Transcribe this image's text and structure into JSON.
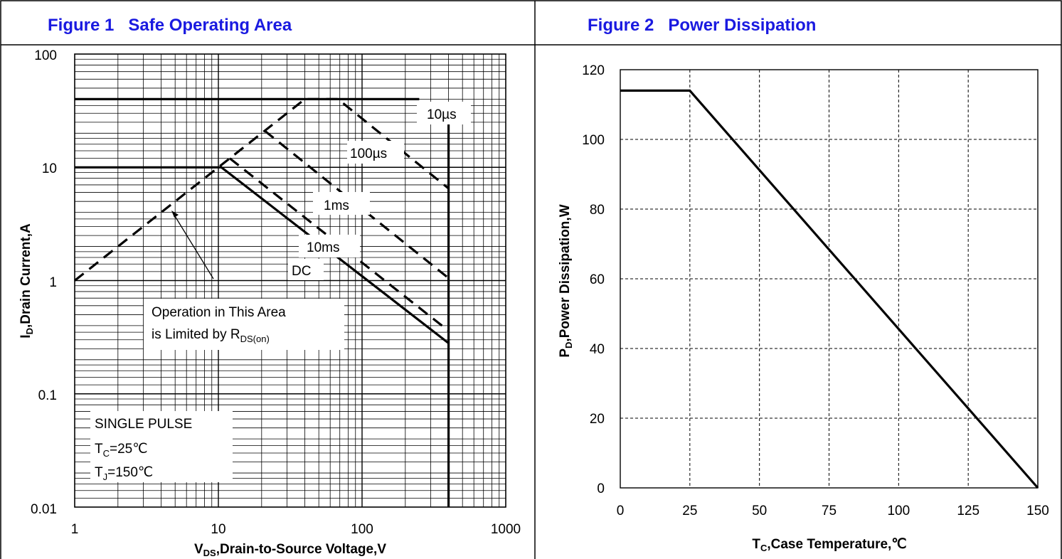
{
  "chart_data": [
    {
      "type": "line",
      "title": "Figure 1   Safe Operating Area",
      "x_scale": "log",
      "y_scale": "log",
      "xlim": [
        1,
        1000
      ],
      "ylim": [
        0.01,
        100
      ],
      "x_ticks": [
        "1",
        "10",
        "100",
        "1000"
      ],
      "y_ticks": [
        "100",
        "10",
        "1",
        "0.1",
        "0.01"
      ],
      "xlabel": {
        "main": "V",
        "sub": "DS",
        "rest": ",Drain-to-Source Voltage,V"
      },
      "ylabel": {
        "main": "I",
        "sub": "D",
        "rest": ",Drain Current,A"
      },
      "series": [
        {
          "name": "10µs",
          "style": "solid",
          "x": [
            1,
            250
          ],
          "y": [
            40,
            40
          ]
        },
        {
          "name": "10µs",
          "style": "dashed",
          "x": [
            1,
            40,
            68,
            400
          ],
          "y": [
            1,
            40,
            40,
            6.5
          ]
        },
        {
          "name": "100µs",
          "style": "dashed",
          "x": [
            21,
            400
          ],
          "y": [
            21,
            1.05
          ]
        },
        {
          "name": "1ms",
          "style": "dashed",
          "x": [
            12,
            400
          ],
          "y": [
            12,
            0.36
          ]
        },
        {
          "name": "DC",
          "style": "solid",
          "x": [
            1,
            10.5,
            400
          ],
          "y": [
            10,
            10,
            0.28
          ]
        },
        {
          "name": "",
          "style": "solid",
          "x": [
            400,
            400
          ],
          "y": [
            25,
            0.01
          ]
        }
      ],
      "annotations": {
        "pulse_10us": "10µs",
        "pulse_100us": "100µs",
        "pulse_1ms": "1ms",
        "pulse_10ms": "10ms",
        "dc": "DC",
        "rds_line1": "Operation in This Area",
        "rds_line2_main": "is Limited by R",
        "rds_line2_sub": "DS(on)",
        "single_pulse": "SINGLE PULSE",
        "tc_main": "T",
        "tc_sub": "C",
        "tc_rest": "=25℃",
        "tj_main": "T",
        "tj_sub": "J",
        "tj_rest": "=150℃"
      }
    },
    {
      "type": "line",
      "title": "Figure 2   Power Dissipation",
      "xlim": [
        0,
        150
      ],
      "ylim": [
        0,
        120
      ],
      "x_ticks": [
        0,
        25,
        50,
        75,
        100,
        125,
        150
      ],
      "y_ticks": [
        0,
        20,
        40,
        60,
        80,
        100,
        120
      ],
      "grid": "dashed",
      "xlabel": {
        "main": "T",
        "sub": "C",
        "rest": ",Case Temperature,℃"
      },
      "ylabel": {
        "main": "P",
        "sub": "D",
        "rest": ",Power Dissipation,W"
      },
      "series": [
        {
          "name": "",
          "x": [
            0,
            25,
            150
          ],
          "y": [
            114,
            114,
            0
          ]
        }
      ]
    }
  ]
}
